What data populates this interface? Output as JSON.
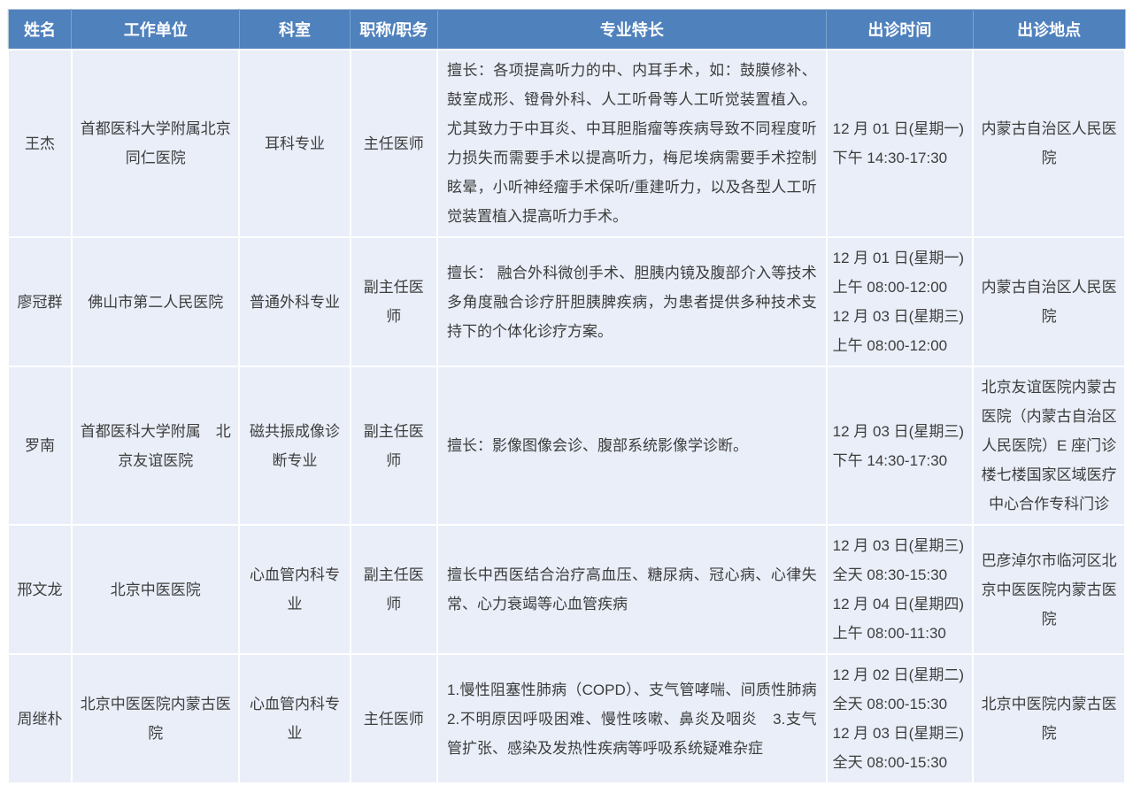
{
  "colors": {
    "header_bg": "#4f81bd",
    "header_text": "#ffffff",
    "row_bg": "#e9eef8",
    "body_text": "#3d3d3d",
    "grid_line": "#ffffff"
  },
  "table": {
    "headers": [
      "姓名",
      "工作单位",
      "科室",
      "职称/职务",
      "专业特长",
      "出诊时间",
      "出诊地点"
    ],
    "rows": [
      {
        "name": "王杰",
        "work_unit": "首都医科大学附属北京同仁医院",
        "department": "耳科专业",
        "title": "主任医师",
        "specialty": "擅长：各项提高听力的中、内耳手术，如：鼓膜修补、鼓室成形、镫骨外科、人工听骨等人工听觉装置植入。尤其致力于中耳炎、中耳胆脂瘤等疾病导致不同程度听力损失而需要手术以提高听力，梅尼埃病需要手术控制眩晕，小听神经瘤手术保听/重建听力，以及各型人工听觉装置植入提高听力手术。",
        "schedule": [
          "12 月 01 日(星期一)",
          "下午 14:30-17:30"
        ],
        "location": "内蒙古自治区人民医院"
      },
      {
        "name": "廖冠群",
        "work_unit": "佛山市第二人民医院",
        "department": "普通外科专业",
        "title": "副主任医师",
        "specialty": "擅长： 融合外科微创手术、胆胰内镜及腹部介入等技术多角度融合诊疗肝胆胰脾疾病，为患者提供多种技术支持下的个体化诊疗方案。",
        "schedule": [
          "12 月 01 日(星期一)",
          "上午 08:00-12:00",
          "12 月 03 日(星期三)",
          "上午 08:00-12:00"
        ],
        "location": "内蒙古自治区人民医院"
      },
      {
        "name": "罗南",
        "work_unit": "首都医科大学附属　北京友谊医院",
        "department": "磁共振成像诊断专业",
        "title": "副主任医师",
        "specialty": "擅长：影像图像会诊、腹部系统影像学诊断。",
        "schedule": [
          "12 月 03 日(星期三)",
          "下午 14:30-17:30"
        ],
        "location": "北京友谊医院内蒙古医院（内蒙古自治区人民医院）E 座门诊楼七楼国家区域医疗中心合作专科门诊"
      },
      {
        "name": "邢文龙",
        "work_unit": "北京中医医院",
        "department": "心血管内科专业",
        "title": "副主任医师",
        "specialty": "擅长中西医结合治疗高血压、糖尿病、冠心病、心律失常、心力衰竭等心血管疾病",
        "schedule": [
          "12 月 03 日(星期三)",
          "全天 08:30-15:30",
          "12 月 04 日(星期四)",
          "上午 08:00-11:30"
        ],
        "location": "巴彦淖尔市临河区北京中医医院内蒙古医院"
      },
      {
        "name": "周继朴",
        "work_unit": "北京中医医院内蒙古医院",
        "department": "心血管内科专业",
        "title": "主任医师",
        "specialty": "1.慢性阻塞性肺病（COPD）、支气管哮喘、间质性肺病　2.不明原因呼吸困难、慢性咳嗽、鼻炎及咽炎　3.支气管扩张、感染及发热性疾病等呼吸系统疑难杂症",
        "schedule": [
          "12 月 02 日(星期二)",
          "全天 08:00-15:30",
          "12 月 03 日(星期三)",
          "全天 08:00-15:30"
        ],
        "location": "北京中医院内蒙古医院"
      }
    ]
  }
}
